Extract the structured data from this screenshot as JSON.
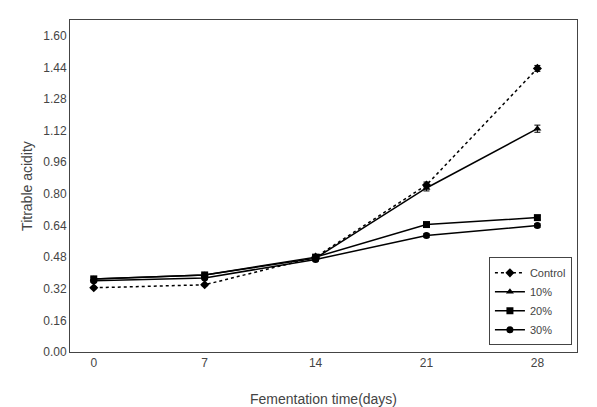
{
  "chart_data": {
    "type": "line",
    "xlabel": "Fementation time(days)",
    "ylabel": "Titrable acidity",
    "x": [
      0,
      7,
      14,
      21,
      28
    ],
    "series": [
      {
        "name": "Control",
        "color": "#000000",
        "marker": "diamond",
        "line_style": "dotted",
        "values": [
          0.325,
          0.34,
          0.48,
          0.845,
          1.435
        ],
        "errors": [
          0.005,
          0.005,
          0.01,
          0.015,
          0.015
        ]
      },
      {
        "name": "10%",
        "color": "#000000",
        "marker": "triangle-up",
        "line_style": "solid",
        "values": [
          0.37,
          0.39,
          0.475,
          0.83,
          1.13
        ],
        "errors": [
          0.008,
          0.008,
          0.01,
          0.015,
          0.018
        ]
      },
      {
        "name": "20%",
        "color": "#000000",
        "marker": "square",
        "line_style": "solid",
        "values": [
          0.37,
          0.39,
          0.48,
          0.645,
          0.68
        ],
        "errors": [
          0.008,
          0.008,
          0.01,
          0.01,
          0.01
        ]
      },
      {
        "name": "30%",
        "color": "#000000",
        "marker": "circle",
        "line_style": "solid",
        "values": [
          0.36,
          0.375,
          0.468,
          0.59,
          0.64
        ],
        "errors": [
          0.008,
          0.008,
          0.01,
          0.01,
          0.01
        ]
      }
    ],
    "xlim": [
      -1.5,
      30.5
    ],
    "xticks": [
      0,
      7,
      14,
      21,
      28
    ],
    "ylim": [
      0.0,
      1.68
    ],
    "yticks": [
      {
        "value": 0.0,
        "label": "0.00"
      },
      0.16,
      0.32,
      0.48,
      0.64,
      {
        "value": 0.8,
        "label": "0.80"
      },
      0.96,
      1.12,
      1.28,
      1.44,
      {
        "value": 1.6,
        "label": "1.60"
      }
    ],
    "grid": false,
    "legend": "lower right"
  }
}
